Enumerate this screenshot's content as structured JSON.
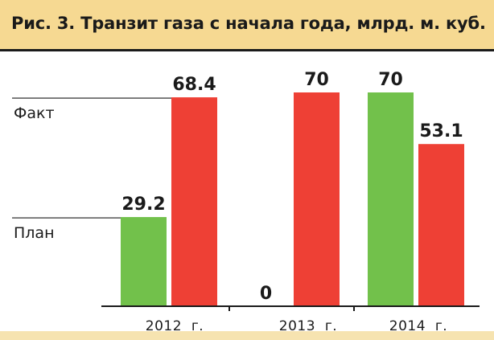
{
  "chart_data": {
    "type": "bar",
    "title": "Рис. 3. Транзит газа с начала года, млрд. м. куб.",
    "categories": [
      "2012  г.",
      "2013  г.",
      "2014  г."
    ],
    "series": [
      {
        "values": [
          29.2,
          0,
          70
        ],
        "value_labels": [
          "29.2",
          "0",
          "70"
        ],
        "color": "#72c14b"
      },
      {
        "values": [
          68.4,
          70,
          53.1
        ],
        "value_labels": [
          "68.4",
          "70",
          "53.1"
        ],
        "color": "#ee4035"
      }
    ],
    "reference_lines": [
      {
        "label": "Факт",
        "value": 68.4
      },
      {
        "label": "План",
        "value": 29.2
      }
    ],
    "ylim": [
      0,
      70
    ],
    "grid": false
  }
}
